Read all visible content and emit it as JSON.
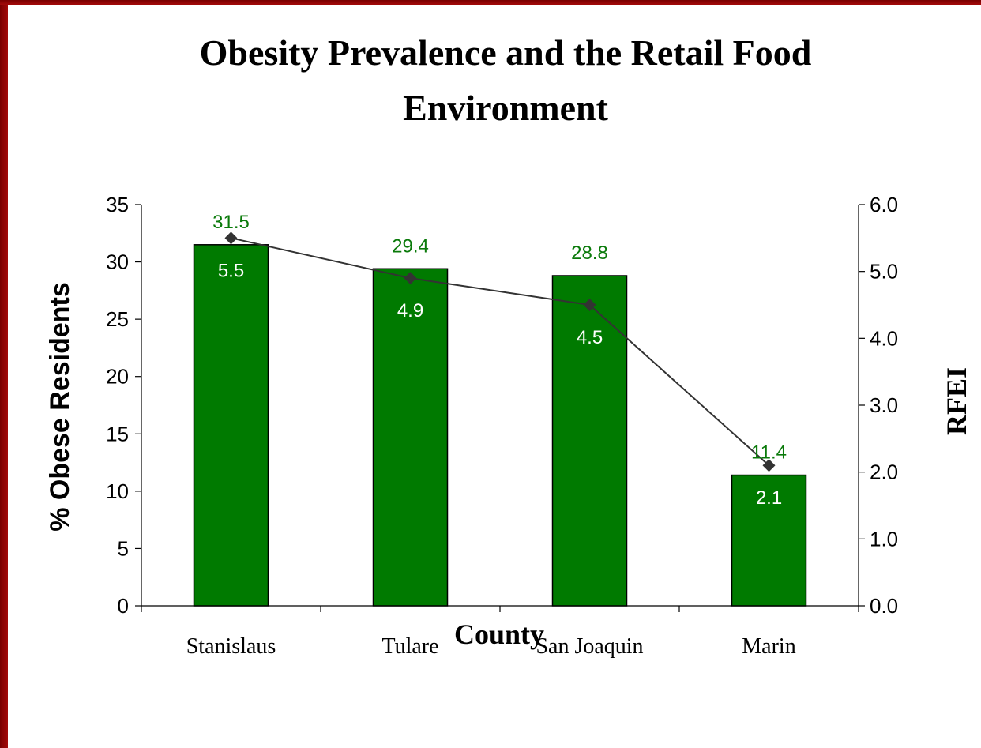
{
  "chart_data": {
    "type": "bar",
    "title_lines": [
      "Obesity Prevalence and the Retail Food",
      "Environment"
    ],
    "xlabel": "County",
    "ylabel": "% Obese Residents",
    "y2label": "RFEI",
    "categories": [
      "Stanislaus",
      "Tulare",
      "San Joaquin",
      "Marin"
    ],
    "series": [
      {
        "type": "bar",
        "axis": "left",
        "color": "#007a00",
        "values": [
          31.5,
          29.4,
          28.8,
          11.4
        ]
      },
      {
        "type": "line",
        "axis": "right",
        "color": "#333333",
        "marker": "diamond",
        "values": [
          5.5,
          4.9,
          4.5,
          2.1
        ]
      }
    ],
    "ylim": [
      0,
      35
    ],
    "yticks": [
      "0",
      "5",
      "10",
      "15",
      "20",
      "25",
      "30",
      "35"
    ],
    "y2lim": [
      0,
      6
    ],
    "y2ticks": [
      "0.0",
      "1.0",
      "2.0",
      "3.0",
      "4.0",
      "5.0",
      "6.0"
    ],
    "bar_labels": [
      "31.5",
      "29.4",
      "28.8",
      "11.4"
    ],
    "line_labels": [
      "5.5",
      "4.9",
      "4.5",
      "2.1"
    ],
    "grid": false,
    "legend": "none"
  }
}
